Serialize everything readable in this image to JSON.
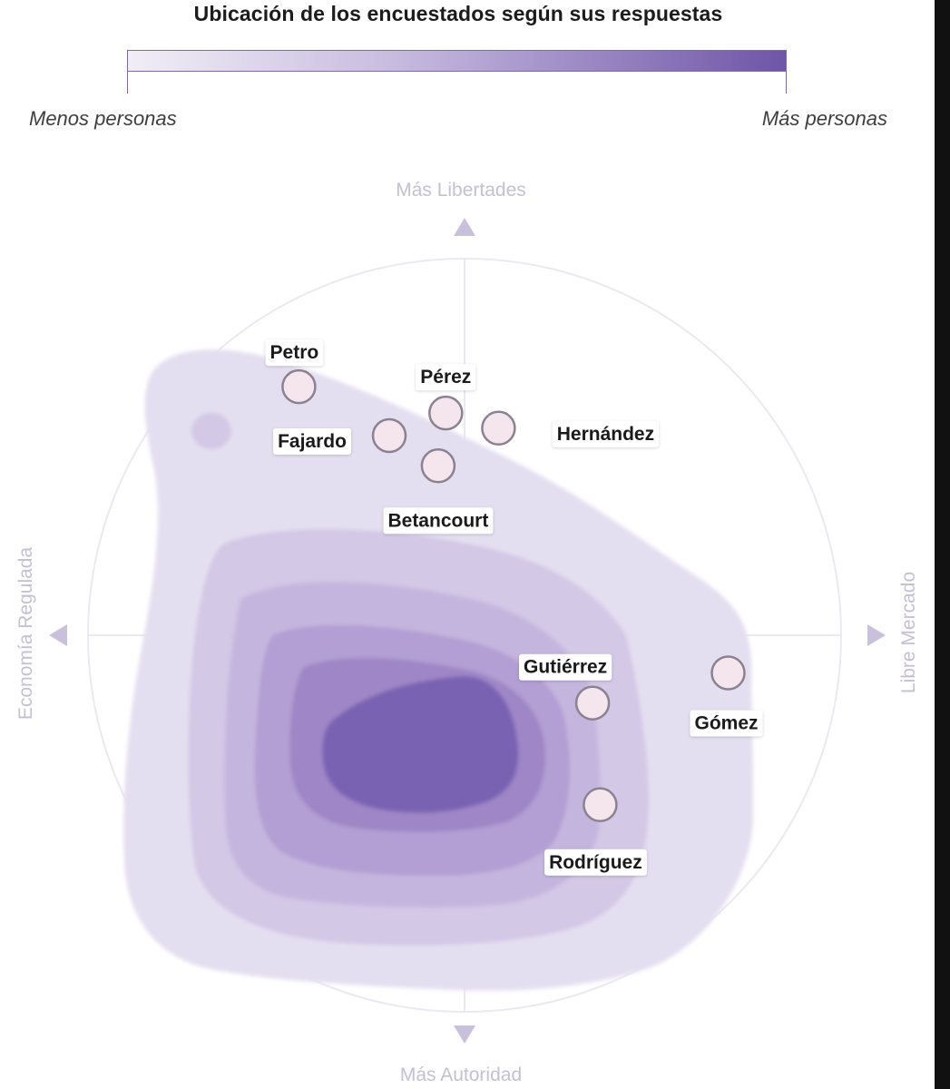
{
  "title": "Ubicación de los encuestados según sus respuestas",
  "legend": {
    "min_label": "Menos personas",
    "max_label": "Más personas",
    "color_low": "#f1eef6",
    "color_high": "#6f55a7"
  },
  "chart_data": {
    "type": "scatter",
    "title": "Ubicación de los encuestados según sus respuestas",
    "axes": {
      "top": "Más Libertades",
      "bottom": "Más Autoridad",
      "left": "Economía Regulada",
      "right": "Libre Mercado"
    },
    "xlim": [
      -1,
      1
    ],
    "ylim": [
      -1,
      1
    ],
    "density_levels": 6,
    "density_colors": [
      "#e4dff0",
      "#d3c8e6",
      "#c4b5de",
      "#b39fd3",
      "#9f86c6",
      "#7a62b3"
    ],
    "points": [
      {
        "name": "Petro",
        "x": -0.44,
        "y": 0.66
      },
      {
        "name": "Pérez",
        "x": -0.05,
        "y": 0.59
      },
      {
        "name": "Fajardo",
        "x": -0.2,
        "y": 0.53
      },
      {
        "name": "Hernández",
        "x": 0.09,
        "y": 0.55
      },
      {
        "name": "Betancourt",
        "x": -0.07,
        "y": 0.45
      },
      {
        "name": "Gutiérrez",
        "x": 0.34,
        "y": -0.18
      },
      {
        "name": "Gómez",
        "x": 0.7,
        "y": -0.1
      },
      {
        "name": "Rodríguez",
        "x": 0.36,
        "y": -0.45
      }
    ],
    "grid": true
  }
}
